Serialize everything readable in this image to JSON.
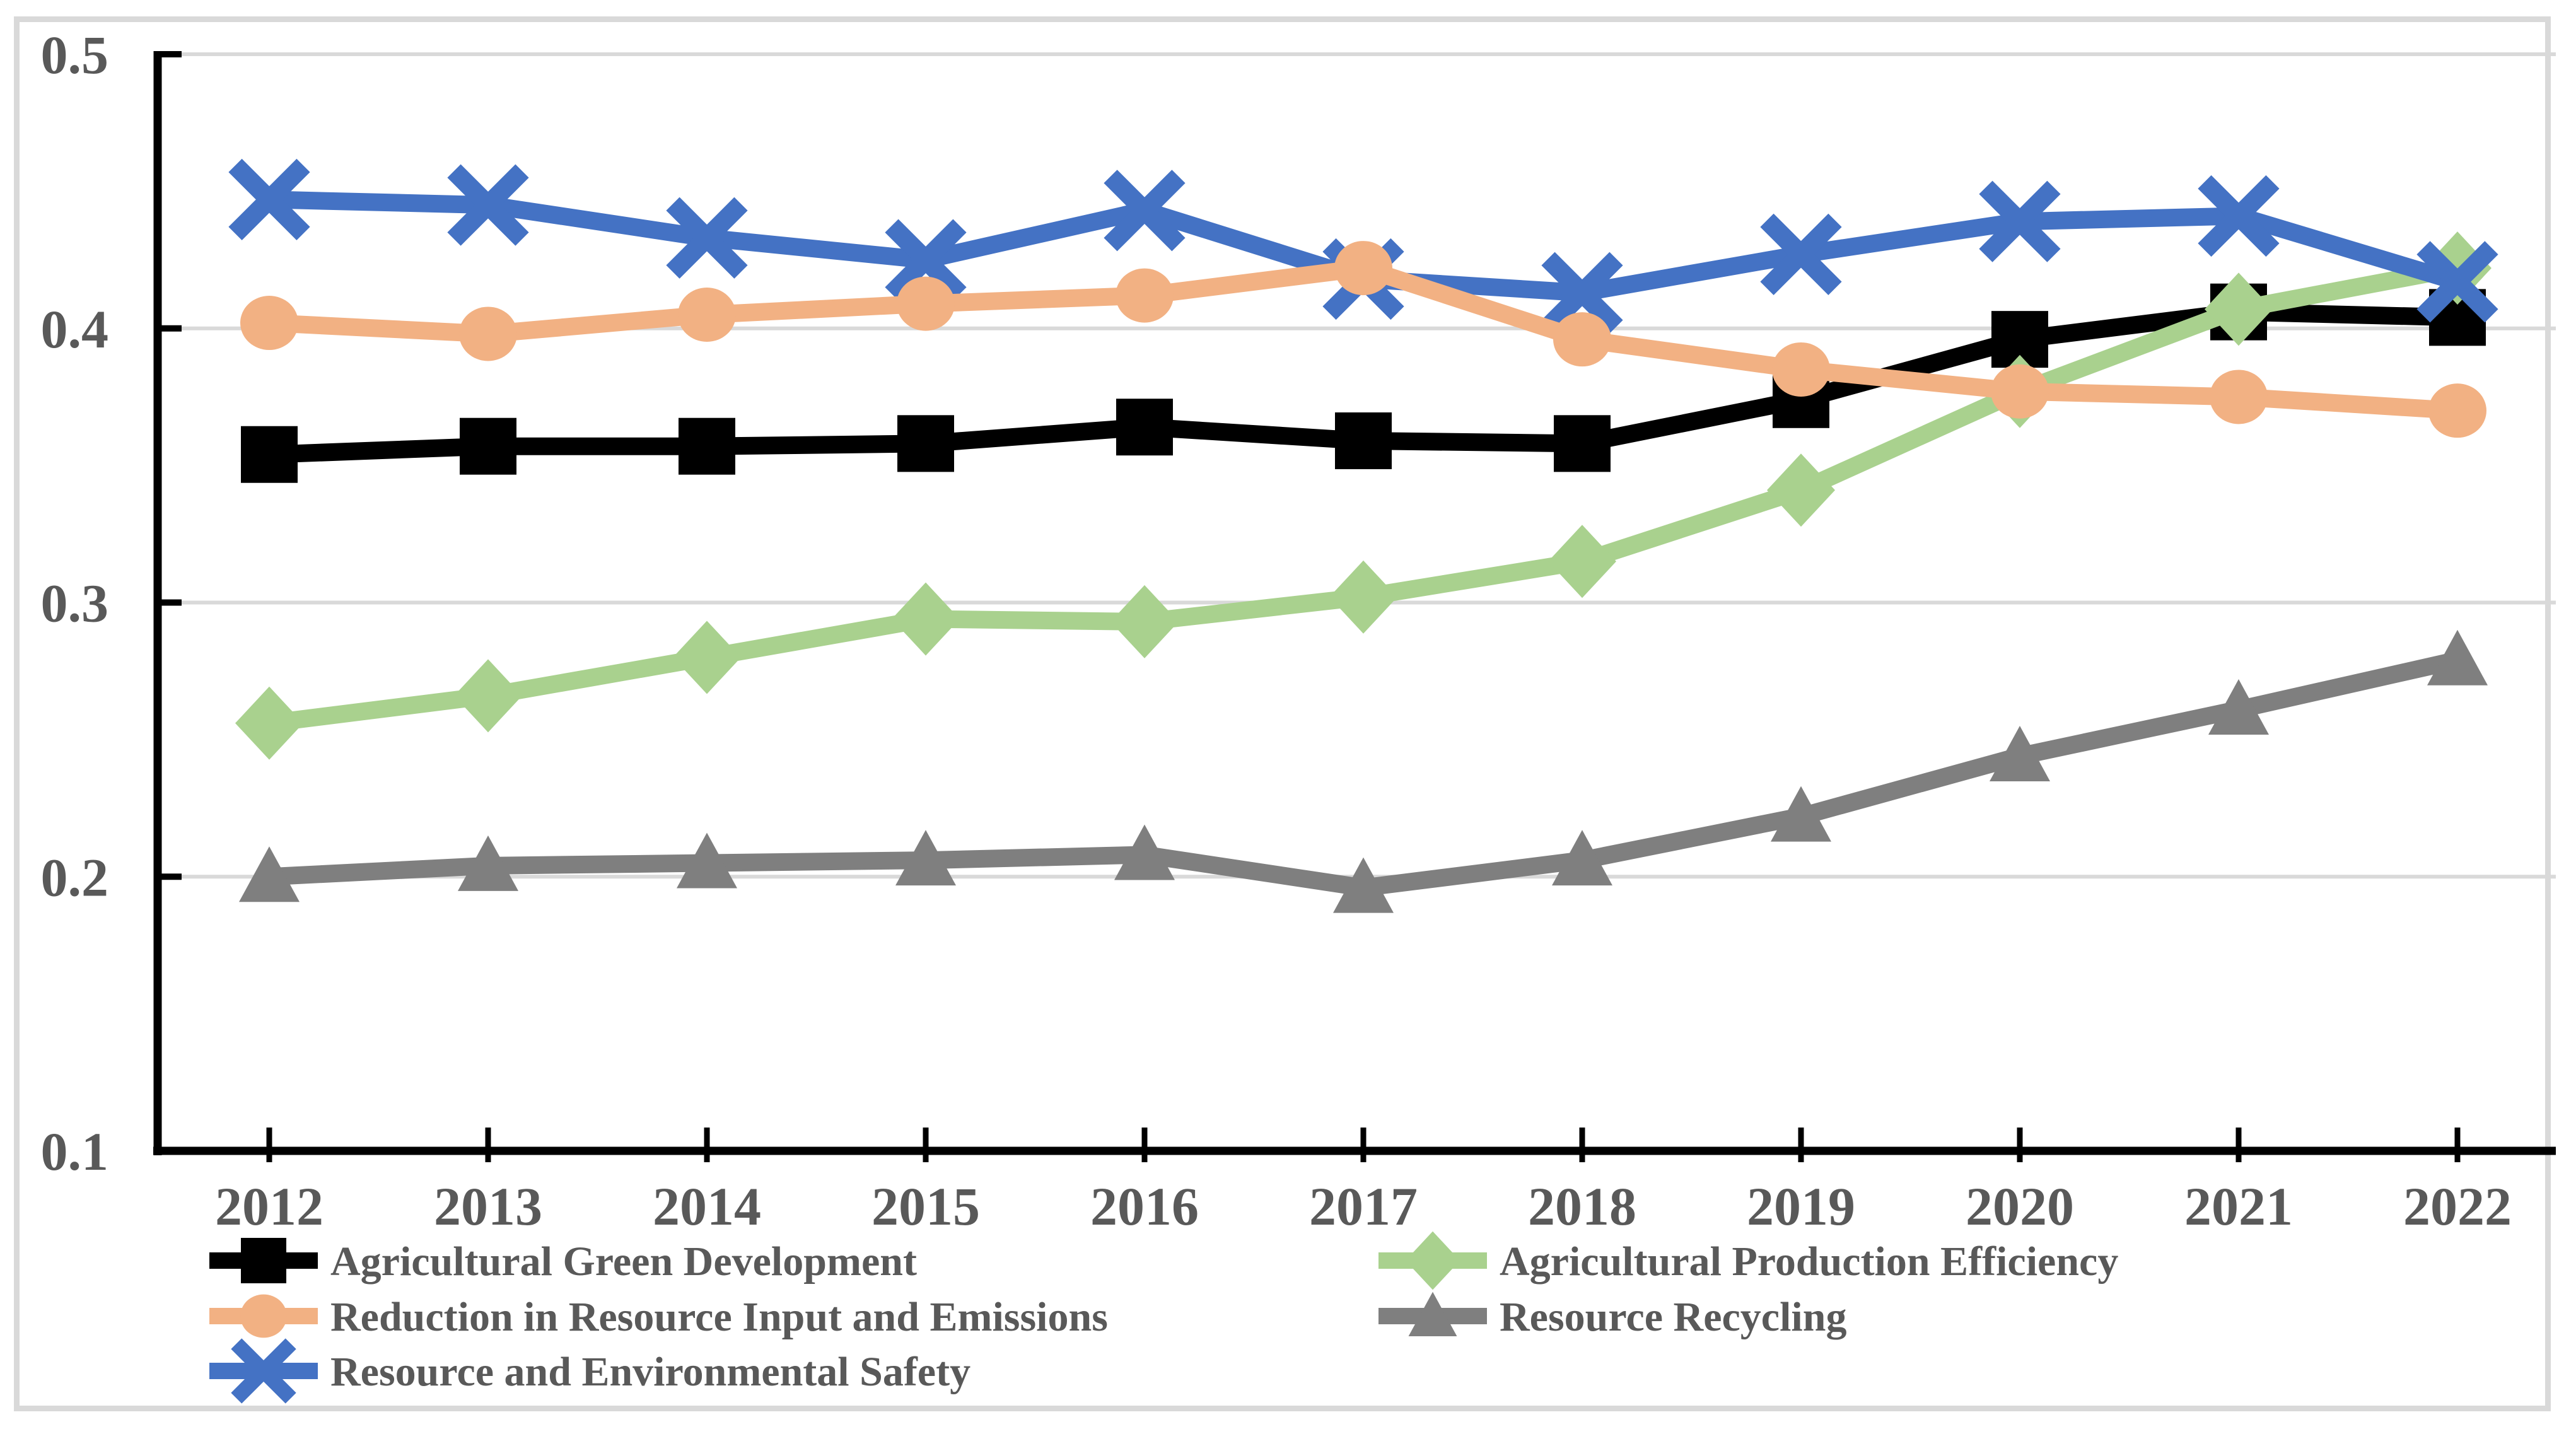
{
  "figure": {
    "background": "#FFFFFF",
    "frame_border_color": "#D9D9D9"
  },
  "chart_data": {
    "type": "line",
    "categories": [
      "2012",
      "2013",
      "2014",
      "2015",
      "2016",
      "2017",
      "2018",
      "2019",
      "2020",
      "2021",
      "2022"
    ],
    "series": [
      {
        "name": "Agricultural Green Development",
        "marker": "square",
        "color": "#000000",
        "z": 0,
        "values": [
          0.354,
          0.357,
          0.357,
          0.358,
          0.364,
          0.359,
          0.358,
          0.374,
          0.396,
          0.406,
          0.404
        ]
      },
      {
        "name": "Agricultural Production Efficiency",
        "marker": "diamond",
        "color": "#A9D18E",
        "z": 1,
        "values": [
          0.256,
          0.266,
          0.28,
          0.294,
          0.293,
          0.302,
          0.315,
          0.341,
          0.377,
          0.407,
          0.422
        ]
      },
      {
        "name": "Reduction in Resource Input and Emissions",
        "marker": "circle",
        "color": "#F2B183",
        "z": 3,
        "values": [
          0.402,
          0.398,
          0.405,
          0.409,
          0.412,
          0.422,
          0.396,
          0.385,
          0.377,
          0.375,
          0.37
        ]
      },
      {
        "name": "Resource Recycling",
        "marker": "triangle",
        "color": "#7F7F7F",
        "z": 4,
        "values": [
          0.2,
          0.204,
          0.205,
          0.206,
          0.208,
          0.196,
          0.206,
          0.222,
          0.244,
          0.261,
          0.279
        ]
      },
      {
        "name": "Resource and Environmental Safety",
        "marker": "x",
        "color": "#4472C4",
        "z": 2,
        "values": [
          0.447,
          0.445,
          0.433,
          0.425,
          0.443,
          0.418,
          0.413,
          0.427,
          0.439,
          0.441,
          0.417
        ]
      }
    ],
    "ylim": [
      0.1,
      0.5
    ],
    "y_ticks": [
      0.5,
      0.4,
      0.3,
      0.2,
      0.1
    ],
    "y_tick_labels": [
      "0.5",
      "0.4",
      "0.3",
      "0.2",
      "0.1"
    ],
    "grid": "horizontal-only",
    "gridline_color": "#D9D9D9",
    "axis_color": "#000000",
    "tick_label_color": "#595959",
    "legend_position": "bottom",
    "legend_columns": 2,
    "legend_text_color": "#595959"
  }
}
